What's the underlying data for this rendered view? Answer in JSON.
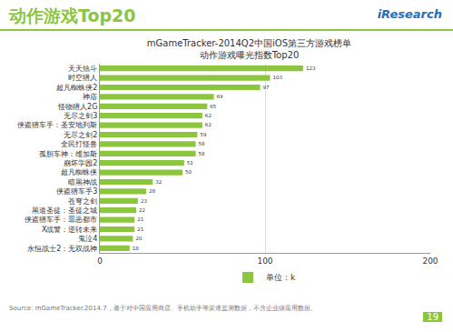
{
  "header": {
    "title": "动作游戏Top20",
    "logo": "iResearch"
  },
  "chart_data": {
    "type": "bar",
    "orientation": "horizontal",
    "title": "mGameTracker-2014Q2中国iOS第三方游戏榜单",
    "subtitle": "动作游戏曝光指数Top20",
    "categories": [
      "天天炫斗",
      "时空猎人",
      "超凡蜘蛛侠2",
      "神庙",
      "怪物猎人2G",
      "无尽之剑3",
      "侠盗猎车手：圣安地列斯",
      "无尽之剑2",
      "全民打怪兽",
      "孤胆车神：维加斯",
      "崩坏学园2",
      "超凡蜘蛛侠",
      "暗黑神战",
      "侠盗猎车手3",
      "苍穹之剑",
      "黑道圣徒：圣徒之城",
      "侠盗猎车手：罪恶都市",
      "X战警：逆转未来",
      "鬼泣4",
      "永恒战士2：无双战神"
    ],
    "series": [
      {
        "name": "单位：k",
        "color": "#8cc63f",
        "values": [
          123,
          103,
          97,
          69,
          65,
          62,
          62,
          59,
          58,
          58,
          51,
          50,
          32,
          28,
          23,
          22,
          21,
          21,
          20,
          18
        ]
      }
    ],
    "xlim": [
      0,
      200
    ],
    "xticks": [
      0,
      100,
      200
    ],
    "grid": true,
    "data_labels": true,
    "legend": "bottom"
  },
  "footer": {
    "source": "Source: mGameTracker.2014.7，基于对中国应用商店、手机助手等渠道监测数据，不含企业级应用数据。",
    "page": "19"
  }
}
